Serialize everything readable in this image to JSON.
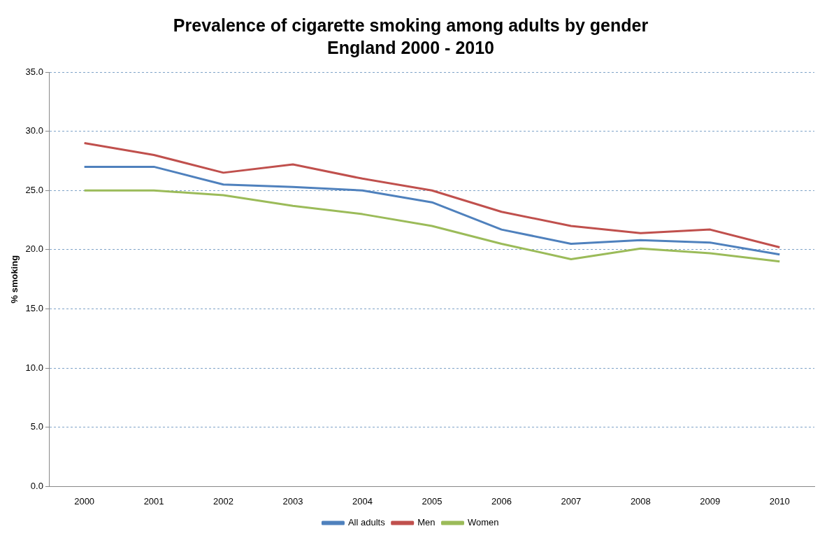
{
  "chart_data": {
    "type": "line",
    "title": "Prevalence of cigarette smoking among adults by gender",
    "subtitle": "England 2000 - 2010",
    "ylabel": "% smoking",
    "categories": [
      "2000",
      "2001",
      "2002",
      "2003",
      "2004",
      "2005",
      "2006",
      "2007",
      "2008",
      "2009",
      "2010"
    ],
    "series": [
      {
        "name": "All adults",
        "color": "#4f81bd",
        "values": [
          27,
          27,
          25.5,
          25.3,
          25,
          24,
          21.7,
          20.5,
          20.8,
          20.6,
          19.6
        ]
      },
      {
        "name": "Men",
        "color": "#c0504d",
        "values": [
          29,
          28,
          26.5,
          27.2,
          26,
          25,
          23.2,
          22,
          21.4,
          21.7,
          20.2
        ]
      },
      {
        "name": "Women",
        "color": "#9bbb59",
        "values": [
          25,
          25,
          24.6,
          23.7,
          23,
          22,
          20.5,
          19.2,
          20.1,
          19.7,
          19
        ]
      }
    ],
    "ylim": [
      0,
      35
    ],
    "yticks": [
      {
        "value": 0,
        "label": "0.0"
      },
      {
        "value": 5,
        "label": "5.0"
      },
      {
        "value": 10,
        "label": "10.0"
      },
      {
        "value": 15,
        "label": "15.0"
      },
      {
        "value": 20,
        "label": "20.0"
      },
      {
        "value": 25,
        "label": "25.0"
      },
      {
        "value": 30,
        "label": "30.0"
      },
      {
        "value": 35,
        "label": "35.0"
      }
    ],
    "grid": "y",
    "legend": "bottom",
    "marker": "none",
    "line_style": "solid"
  }
}
